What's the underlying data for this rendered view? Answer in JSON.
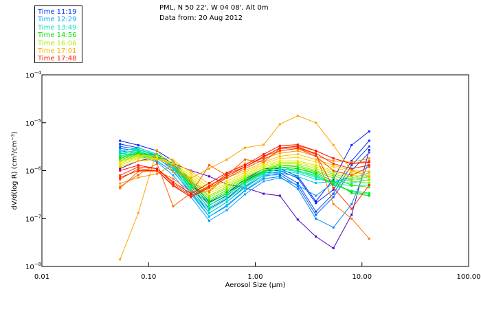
{
  "header": {
    "station_line": "PML, N 50 22', W 04 08', Alt 0m",
    "date_line": "Data from: 20 Aug 2012"
  },
  "legend": {
    "items": [
      {
        "label": "Time 11:19",
        "color": "#0033ff"
      },
      {
        "label": "Time 12:29",
        "color": "#00a0ff"
      },
      {
        "label": "Time 13:49",
        "color": "#00e0c0"
      },
      {
        "label": "Time 14:56",
        "color": "#00e000"
      },
      {
        "label": "Time 16:06",
        "color": "#a0f000"
      },
      {
        "label": "Time 17:01",
        "color": "#ffb000"
      },
      {
        "label": "Time 17:48",
        "color": "#ff2000"
      }
    ]
  },
  "chart_data": {
    "type": "line",
    "title": "",
    "xlabel": "Aerosol Size (µm)",
    "ylabel": "dV/d(log R) (cm³/cm⁻³)",
    "xscale": "log",
    "yscale": "log",
    "xlim": [
      0.01,
      100
    ],
    "ylim": [
      1e-08,
      0.0001
    ],
    "x_tick_labels": [
      "0.01",
      "0.10",
      "1.00",
      "10.00",
      "100.00"
    ],
    "x_ticks": [
      0.01,
      0.1,
      1,
      10,
      100
    ],
    "y_ticks": [
      1e-08,
      1e-07,
      1e-06,
      1e-05,
      0.0001
    ],
    "y_tick_labels": [
      {
        "base": "10",
        "exp": "-8"
      },
      {
        "base": "10",
        "exp": "-7"
      },
      {
        "base": "10",
        "exp": "-6"
      },
      {
        "base": "10",
        "exp": "-5"
      },
      {
        "base": "10",
        "exp": "-4"
      }
    ],
    "grid": false,
    "legend_position": "top-left-outside",
    "x": [
      0.054,
      0.08,
      0.12,
      0.17,
      0.25,
      0.37,
      0.54,
      0.8,
      1.2,
      1.7,
      2.5,
      3.7,
      5.4,
      8.0,
      11.7
    ],
    "series": [
      {
        "color": "#5000c0",
        "values": [
          1.1e-06,
          1.6e-06,
          1.9e-06,
          1.4e-06,
          1e-06,
          7.6e-07,
          5.2e-07,
          4.4e-07,
          3.3e-07,
          3e-07,
          9.5e-08,
          4.2e-08,
          2.4e-08,
          1.2e-07,
          2.7e-06
        ]
      },
      {
        "color": "#0020ff",
        "values": [
          4.2e-06,
          3.4e-06,
          2.6e-06,
          1.6e-06,
          6e-07,
          2.2e-07,
          3.3e-07,
          6.6e-07,
          1.1e-06,
          1.1e-06,
          7.6e-07,
          2.3e-07,
          6.6e-07,
          3.4e-06,
          6.6e-06
        ]
      },
      {
        "color": "#0030ff",
        "values": [
          3.6e-06,
          3e-06,
          2.2e-06,
          1.4e-06,
          5.5e-07,
          1.9e-07,
          3e-07,
          6e-07,
          1e-06,
          1e-06,
          7e-07,
          2.1e-07,
          4e-07,
          1.6e-06,
          4.2e-06
        ]
      },
      {
        "color": "#0048ff",
        "values": [
          3.2e-06,
          2.8e-06,
          2e-06,
          1.2e-06,
          4.8e-07,
          1.6e-07,
          2.6e-07,
          5.3e-07,
          9e-07,
          9e-07,
          5.5e-07,
          1.4e-07,
          3.3e-07,
          1.3e-06,
          3.2e-06
        ]
      },
      {
        "color": "#0060ff",
        "values": [
          2.9e-06,
          2.6e-06,
          1.8e-06,
          1.1e-06,
          4.2e-07,
          1.3e-07,
          2.2e-07,
          4.6e-07,
          8e-07,
          8.2e-07,
          4.8e-07,
          1.2e-07,
          2.8e-07,
          1e-06,
          2.4e-06
        ]
      },
      {
        "color": "#0080ff",
        "values": [
          2.6e-06,
          2.3e-06,
          1.6e-06,
          9.5e-07,
          3.5e-07,
          1.1e-07,
          1.8e-07,
          3.8e-07,
          6.8e-07,
          7.5e-07,
          4.2e-07,
          1e-07,
          6.5e-08,
          2e-07,
          1.6e-06
        ]
      },
      {
        "color": "#00a0ff",
        "values": [
          2.3e-06,
          2.1e-06,
          1.5e-06,
          8e-07,
          2.8e-07,
          9e-08,
          1.5e-07,
          3.2e-07,
          6e-07,
          7e-07,
          5e-07,
          3e-07,
          5.5e-07,
          8e-07,
          1.2e-06
        ]
      },
      {
        "color": "#00c0f0",
        "values": [
          2.4e-06,
          2.6e-06,
          1.9e-06,
          1e-06,
          3.2e-07,
          1.1e-07,
          1.9e-07,
          3.9e-07,
          7.4e-07,
          9e-07,
          7.5e-07,
          5.5e-07,
          6e-07,
          7e-07,
          9e-07
        ]
      },
      {
        "color": "#00d8d0",
        "values": [
          2.6e-06,
          2.8e-06,
          2.1e-06,
          1.1e-06,
          3.6e-07,
          1.3e-07,
          2.2e-07,
          4.4e-07,
          8e-07,
          1e-06,
          8.8e-07,
          6.6e-07,
          6e-07,
          6.5e-07,
          7.5e-07
        ]
      },
      {
        "color": "#00e8b0",
        "values": [
          2.5e-06,
          3e-06,
          2.2e-06,
          1.2e-06,
          3.9e-07,
          1.5e-07,
          2.5e-07,
          4.8e-07,
          8.6e-07,
          1.1e-06,
          9.5e-07,
          7.2e-07,
          5.8e-07,
          5.5e-07,
          6.5e-07
        ]
      },
      {
        "color": "#00f090",
        "values": [
          2.2e-06,
          2.7e-06,
          2.1e-06,
          1.3e-06,
          4.2e-07,
          1.7e-07,
          2.8e-07,
          5.3e-07,
          9e-07,
          1.1e-06,
          1e-06,
          7.6e-07,
          5.5e-07,
          4.8e-07,
          5e-07
        ]
      },
      {
        "color": "#00f060",
        "values": [
          2e-06,
          2.5e-06,
          2e-06,
          1.3e-06,
          4.6e-07,
          1.9e-07,
          3.1e-07,
          5.6e-07,
          9.4e-07,
          1.2e-06,
          1e-06,
          8e-07,
          5e-07,
          3.8e-07,
          3.4e-07
        ]
      },
      {
        "color": "#00e830",
        "values": [
          1.9e-06,
          2.4e-06,
          1.9e-06,
          1.3e-06,
          5e-07,
          2.1e-07,
          3.3e-07,
          5.9e-07,
          9.6e-07,
          1.2e-06,
          1.1e-06,
          8.5e-07,
          5.3e-07,
          3.6e-07,
          3.2e-07
        ]
      },
      {
        "color": "#00e000",
        "values": [
          1.8e-06,
          2.3e-06,
          1.9e-06,
          1.3e-06,
          5.4e-07,
          2.3e-07,
          3.6e-07,
          6.3e-07,
          1e-06,
          1.2e-06,
          1.1e-06,
          9e-07,
          6e-07,
          3.4e-07,
          3e-07
        ]
      },
      {
        "color": "#40e800",
        "values": [
          1.7e-06,
          2.2e-06,
          1.8e-06,
          1.3e-06,
          5.8e-07,
          2.5e-07,
          3.9e-07,
          6.6e-07,
          1e-06,
          1.3e-06,
          1.2e-06,
          9.5e-07,
          7e-07,
          5e-07,
          4.5e-07
        ]
      },
      {
        "color": "#70f000",
        "values": [
          1.6e-06,
          2.1e-06,
          1.8e-06,
          1.3e-06,
          6.2e-07,
          2.8e-07,
          4.3e-07,
          7e-07,
          1.1e-06,
          1.3e-06,
          1.3e-06,
          1e-06,
          7.8e-07,
          6e-07,
          5.5e-07
        ]
      },
      {
        "color": "#a0f000",
        "values": [
          1.5e-06,
          2e-06,
          1.8e-06,
          1.4e-06,
          6.6e-07,
          3e-07,
          4.6e-07,
          7.4e-07,
          1.1e-06,
          1.4e-06,
          1.4e-06,
          1.1e-06,
          8.5e-07,
          6.8e-07,
          6.2e-07
        ]
      },
      {
        "color": "#c8f000",
        "values": [
          1.4e-06,
          1.9e-06,
          1.7e-06,
          1.4e-06,
          7e-07,
          3.4e-07,
          5e-07,
          7.8e-07,
          1.2e-06,
          1.5e-06,
          1.5e-06,
          1.2e-06,
          9.2e-07,
          7.4e-07,
          7e-07
        ]
      },
      {
        "color": "#e8e800",
        "values": [
          1.3e-06,
          1.8e-06,
          1.8e-06,
          1.5e-06,
          7.6e-07,
          3.8e-07,
          5.4e-07,
          8.4e-07,
          1.3e-06,
          1.6e-06,
          1.6e-06,
          1.3e-06,
          1e-06,
          8e-07,
          7.6e-07
        ]
      },
      {
        "color": "#ffd800",
        "values": [
          1.5e-06,
          2.1e-06,
          2e-06,
          1.7e-06,
          8.6e-07,
          4.4e-07,
          6e-07,
          9.2e-07,
          1.4e-06,
          1.8e-06,
          1.9e-06,
          1.5e-06,
          1.2e-06,
          9e-07,
          8.5e-07
        ]
      },
      {
        "color": "#ffc000",
        "values": [
          1.2e-06,
          1.6e-06,
          1.7e-06,
          1.5e-06,
          9.6e-07,
          5.2e-07,
          7e-07,
          1e-06,
          1.5e-06,
          2e-06,
          2.2e-06,
          1.7e-06,
          1.3e-06,
          1e-06,
          9.6e-07
        ]
      },
      {
        "color": "#ffa500",
        "values": [
          1.4e-08,
          1.3e-07,
          2.7e-06,
          9.4e-07,
          7e-07,
          1.1e-06,
          1.7e-06,
          3e-06,
          3.5e-06,
          9.3e-06,
          1.4e-05,
          1e-05,
          3.4e-06,
          1e-06,
          7.6e-07
        ]
      },
      {
        "color": "#ff9000",
        "values": [
          5.4e-07,
          7.2e-07,
          8.6e-07,
          1.3e-06,
          5.6e-07,
          3.8e-07,
          8.8e-07,
          1.4e-06,
          1.8e-06,
          2.3e-06,
          2.6e-06,
          2e-06,
          1.6e-06,
          1.5e-06,
          1.8e-06
        ]
      },
      {
        "color": "#ff7800",
        "values": [
          4.3e-07,
          9.6e-07,
          9.8e-07,
          6.8e-07,
          3.6e-07,
          3.6e-07,
          7.6e-07,
          1.2e-06,
          2e-06,
          2.6e-06,
          2.9e-06,
          2.2e-06,
          2e-07,
          1e-07,
          3.8e-08
        ]
      },
      {
        "color": "#ff6000",
        "values": [
          4.6e-07,
          8.2e-07,
          1.4e-06,
          1.8e-07,
          3.4e-07,
          1.3e-06,
          8e-07,
          1.7e-06,
          1.5e-06,
          2.9e-06,
          3.3e-06,
          2.6e-06,
          1.8e-06,
          1.4e-06,
          1.6e-06
        ]
      },
      {
        "color": "#ff4800",
        "values": [
          6.6e-07,
          1.1e-06,
          1e-06,
          5e-07,
          2.8e-07,
          4.4e-07,
          7e-07,
          1.1e-06,
          1.7e-06,
          2.6e-06,
          2.9e-06,
          2e-06,
          1e-06,
          8e-07,
          1.2e-06
        ]
      },
      {
        "color": "#ff3000",
        "values": [
          8e-07,
          1.2e-06,
          1.1e-06,
          5.4e-07,
          3e-07,
          4.8e-07,
          7.6e-07,
          1.2e-06,
          1.9e-06,
          3e-06,
          3.2e-06,
          2.2e-06,
          4.4e-07,
          1.6e-07,
          5e-07
        ]
      },
      {
        "color": "#ff2000",
        "values": [
          7.2e-07,
          1e-06,
          1e-06,
          4.8e-07,
          2.8e-07,
          4.6e-07,
          8.4e-07,
          1.2e-06,
          2e-06,
          2.9e-06,
          3e-06,
          2.3e-06,
          1.4e-06,
          1.1e-06,
          1.3e-06
        ]
      },
      {
        "color": "#ff1000",
        "values": [
          1e-06,
          1.3e-06,
          1.1e-06,
          5.8e-07,
          3.3e-07,
          5.5e-07,
          9e-07,
          1.3e-06,
          2.2e-06,
          3.3e-06,
          3.5e-06,
          2.6e-06,
          1.8e-06,
          1.4e-06,
          1.5e-06
        ]
      }
    ]
  }
}
